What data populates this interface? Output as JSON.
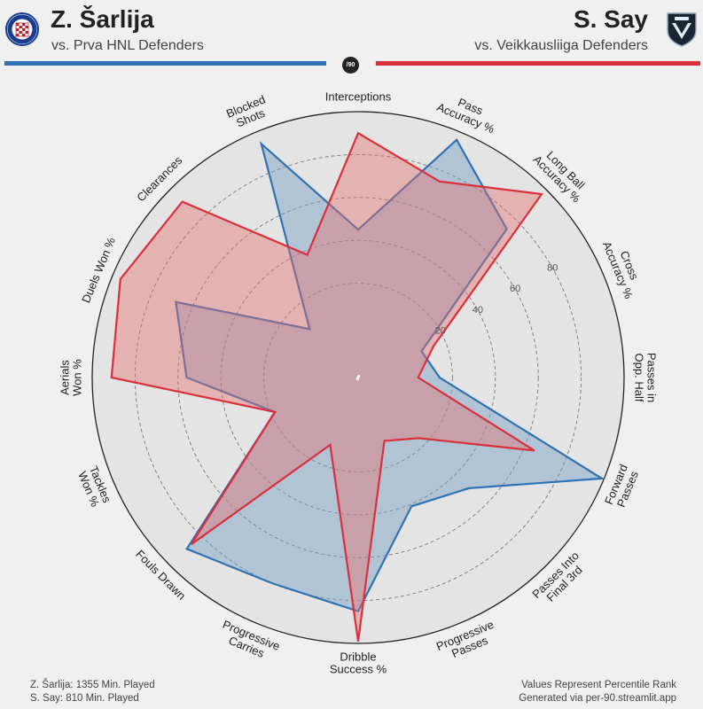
{
  "header": {
    "player1": {
      "name": "Z. Šarlija",
      "comparison": "vs. Prva HNL Defenders"
    },
    "player2": {
      "name": "S. Say",
      "comparison": "vs. Veikkausliiga Defenders"
    },
    "badge": "/90"
  },
  "logos": {
    "left": {
      "name": "hajduk-split-crest",
      "text": "HAJDUK SPLIT"
    },
    "right": {
      "name": "ac-oulu-crest",
      "text": "AC OULU"
    }
  },
  "colors": {
    "player1": "#2f73b3",
    "player2": "#d9303a",
    "player1_fill": "rgba(120,160,196,0.48)",
    "player2_fill": "rgba(230,110,110,0.42)"
  },
  "footer": {
    "minutes1": "Z. Šarlija: 1355 Min. Played",
    "minutes2": "S. Say: 810 Min. Played",
    "note": "Values Represent Percentile Rank",
    "source": "Generated via per-90.streamlit.app"
  },
  "chart_data": {
    "type": "radar",
    "axis_range": [
      0,
      100
    ],
    "rings": [
      20,
      40,
      60,
      80
    ],
    "ring_labels": [
      "20",
      "40",
      "60",
      "80"
    ],
    "axes": [
      [
        "Interceptions"
      ],
      [
        "Pass",
        "Accuracy %"
      ],
      [
        "Long Ball",
        "Accuracy %"
      ],
      [
        "Cross",
        "Accuracy %"
      ],
      [
        "Passes in",
        "Opp. Half"
      ],
      [
        "Forward",
        "Passes"
      ],
      [
        "Passes Into",
        "Final 3rd"
      ],
      [
        "Progressive",
        "Passes"
      ],
      [
        "Dribble",
        "Success %"
      ],
      [
        "Progressive",
        "Carries"
      ],
      [
        "Fouls Drawn"
      ],
      [
        "Tackles",
        "Won %"
      ],
      [
        "Aerials",
        "Won %"
      ],
      [
        "Duels Won %"
      ],
      [
        "Clearances"
      ],
      [
        "Blocked",
        "Shots"
      ]
    ],
    "series": [
      {
        "name": "Z. Šarlija",
        "values": [
          45,
          96,
          74,
          8,
          14,
          99,
          49,
          41,
          85,
          80,
          89,
          18,
          56,
          68,
          8,
          94
        ]
      },
      {
        "name": "S. Say",
        "values": [
          90,
          75,
          97,
          14,
          4,
          65,
          16,
          8,
          99,
          10,
          86,
          18,
          91,
          96,
          92,
          38
        ]
      }
    ]
  }
}
